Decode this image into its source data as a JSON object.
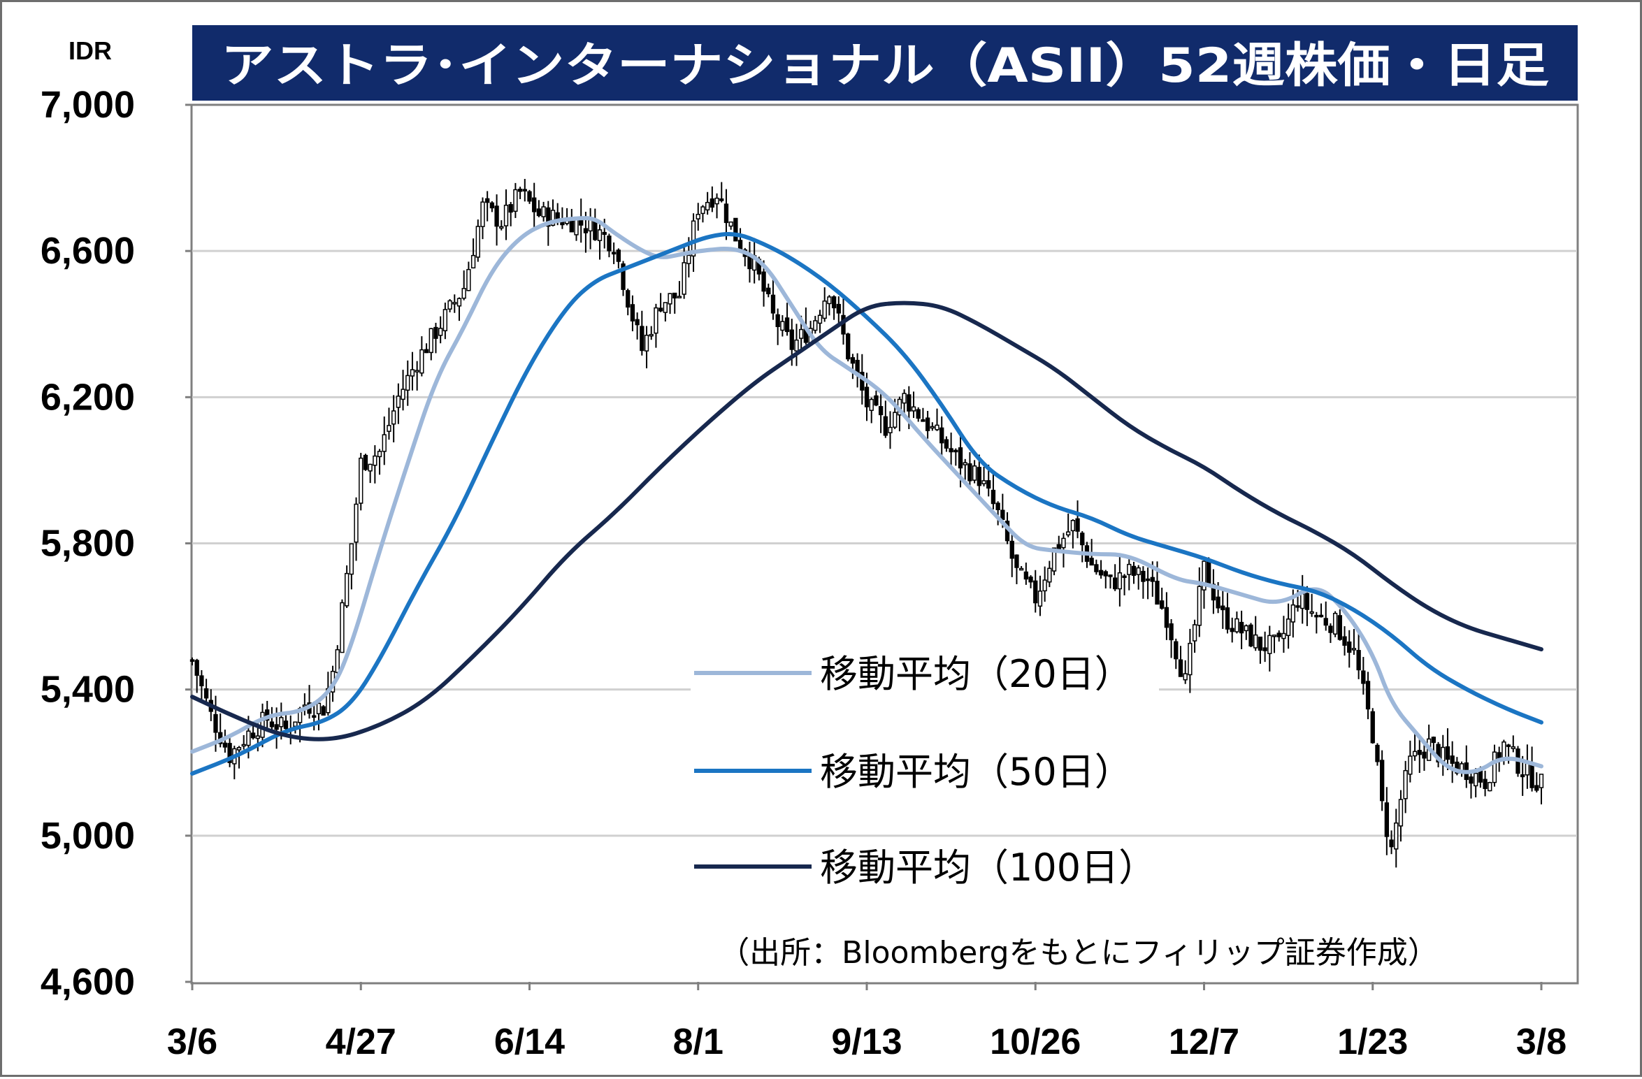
{
  "chart_data": {
    "type": "candlestick",
    "title": "アストラ･インターナショナル（ASII）52週株価・日足",
    "unit_label": "IDR",
    "source": "（出所：Bloombergをもとにフィリップ証券作成）",
    "ylim": [
      4600,
      7000
    ],
    "y_ticks": [
      {
        "value": 4600,
        "label": "4,600"
      },
      {
        "value": 5000,
        "label": "5,000"
      },
      {
        "value": 5400,
        "label": "5,400"
      },
      {
        "value": 5800,
        "label": "5,800"
      },
      {
        "value": 6200,
        "label": "6,200"
      },
      {
        "value": 6600,
        "label": "6,600"
      },
      {
        "value": 7000,
        "label": "7,000"
      }
    ],
    "x_ticks": [
      {
        "index": 0,
        "label": "3/6"
      },
      {
        "index": 36,
        "label": "4/27"
      },
      {
        "index": 72,
        "label": "6/14"
      },
      {
        "index": 108,
        "label": "8/1"
      },
      {
        "index": 144,
        "label": "9/13"
      },
      {
        "index": 180,
        "label": "10/26"
      },
      {
        "index": 216,
        "label": "12/7"
      },
      {
        "index": 252,
        "label": "1/23"
      },
      {
        "index": 288,
        "label": "3/8"
      }
    ],
    "grid": true,
    "legend_placement": "lower-middle",
    "price_anchors": [
      [
        0,
        5480
      ],
      [
        4,
        5330
      ],
      [
        8,
        5220
      ],
      [
        12,
        5280
      ],
      [
        16,
        5320
      ],
      [
        20,
        5290
      ],
      [
        24,
        5360
      ],
      [
        28,
        5350
      ],
      [
        30,
        5450
      ],
      [
        32,
        5620
      ],
      [
        34,
        5800
      ],
      [
        36,
        6020
      ],
      [
        40,
        6050
      ],
      [
        44,
        6200
      ],
      [
        48,
        6300
      ],
      [
        54,
        6420
      ],
      [
        58,
        6500
      ],
      [
        62,
        6720
      ],
      [
        66,
        6680
      ],
      [
        70,
        6760
      ],
      [
        74,
        6700
      ],
      [
        78,
        6690
      ],
      [
        82,
        6680
      ],
      [
        86,
        6660
      ],
      [
        90,
        6620
      ],
      [
        94,
        6420
      ],
      [
        96,
        6330
      ],
      [
        100,
        6460
      ],
      [
        104,
        6480
      ],
      [
        108,
        6720
      ],
      [
        112,
        6760
      ],
      [
        116,
        6640
      ],
      [
        120,
        6560
      ],
      [
        124,
        6420
      ],
      [
        128,
        6340
      ],
      [
        132,
        6390
      ],
      [
        136,
        6500
      ],
      [
        140,
        6320
      ],
      [
        144,
        6180
      ],
      [
        148,
        6120
      ],
      [
        152,
        6200
      ],
      [
        156,
        6140
      ],
      [
        160,
        6080
      ],
      [
        164,
        6020
      ],
      [
        168,
        5980
      ],
      [
        172,
        5880
      ],
      [
        176,
        5720
      ],
      [
        180,
        5650
      ],
      [
        184,
        5780
      ],
      [
        188,
        5850
      ],
      [
        192,
        5740
      ],
      [
        196,
        5690
      ],
      [
        200,
        5720
      ],
      [
        204,
        5700
      ],
      [
        208,
        5600
      ],
      [
        212,
        5420
      ],
      [
        216,
        5730
      ],
      [
        220,
        5600
      ],
      [
        224,
        5560
      ],
      [
        228,
        5520
      ],
      [
        232,
        5520
      ],
      [
        236,
        5650
      ],
      [
        240,
        5600
      ],
      [
        244,
        5580
      ],
      [
        248,
        5500
      ],
      [
        252,
        5280
      ],
      [
        254,
        5080
      ],
      [
        256,
        4960
      ],
      [
        258,
        5100
      ],
      [
        260,
        5200
      ],
      [
        264,
        5250
      ],
      [
        268,
        5200
      ],
      [
        272,
        5180
      ],
      [
        276,
        5150
      ],
      [
        280,
        5250
      ],
      [
        284,
        5180
      ],
      [
        288,
        5140
      ]
    ],
    "series": [
      {
        "name": "移動平均（20日）",
        "color": "#9db7d9",
        "x": [
          0,
          8,
          16,
          24,
          30,
          34,
          40,
          46,
          52,
          58,
          64,
          70,
          76,
          82,
          86,
          90,
          96,
          100,
          104,
          108,
          116,
          122,
          128,
          134,
          140,
          148,
          156,
          164,
          172,
          178,
          184,
          192,
          200,
          210,
          216,
          224,
          232,
          240,
          246,
          252,
          256,
          262,
          268,
          274,
          280,
          288
        ],
        "values": [
          5230,
          5270,
          5330,
          5340,
          5400,
          5520,
          5780,
          6020,
          6250,
          6390,
          6550,
          6640,
          6680,
          6690,
          6690,
          6650,
          6600,
          6580,
          6590,
          6600,
          6610,
          6570,
          6450,
          6330,
          6280,
          6210,
          6090,
          5980,
          5870,
          5790,
          5780,
          5770,
          5770,
          5700,
          5690,
          5660,
          5630,
          5690,
          5620,
          5500,
          5360,
          5270,
          5180,
          5170,
          5220,
          5190
        ]
      },
      {
        "name": "移動平均（50日）",
        "color": "#1b75c3",
        "x": [
          0,
          10,
          20,
          28,
          34,
          40,
          48,
          56,
          64,
          72,
          80,
          86,
          92,
          98,
          104,
          110,
          116,
          122,
          128,
          136,
          144,
          152,
          160,
          168,
          176,
          184,
          192,
          200,
          208,
          216,
          224,
          232,
          240,
          248,
          256,
          264,
          272,
          280,
          288
        ],
        "values": [
          5170,
          5220,
          5290,
          5310,
          5360,
          5480,
          5680,
          5860,
          6080,
          6290,
          6450,
          6520,
          6550,
          6580,
          6610,
          6640,
          6650,
          6620,
          6580,
          6510,
          6420,
          6320,
          6180,
          6020,
          5950,
          5900,
          5870,
          5820,
          5790,
          5760,
          5720,
          5690,
          5670,
          5620,
          5550,
          5460,
          5400,
          5350,
          5310
        ]
      },
      {
        "name": "移動平均（100日）",
        "color": "#17284e",
        "x": [
          0,
          10,
          20,
          30,
          40,
          50,
          60,
          70,
          80,
          90,
          100,
          110,
          120,
          128,
          136,
          144,
          152,
          160,
          168,
          176,
          184,
          192,
          200,
          208,
          216,
          224,
          232,
          240,
          248,
          256,
          264,
          272,
          280,
          288
        ],
        "values": [
          5380,
          5320,
          5270,
          5260,
          5300,
          5370,
          5490,
          5620,
          5770,
          5880,
          6010,
          6130,
          6240,
          6310,
          6380,
          6450,
          6460,
          6450,
          6400,
          6340,
          6280,
          6200,
          6120,
          6060,
          6010,
          5940,
          5880,
          5830,
          5770,
          5690,
          5620,
          5570,
          5540,
          5510
        ]
      }
    ]
  }
}
